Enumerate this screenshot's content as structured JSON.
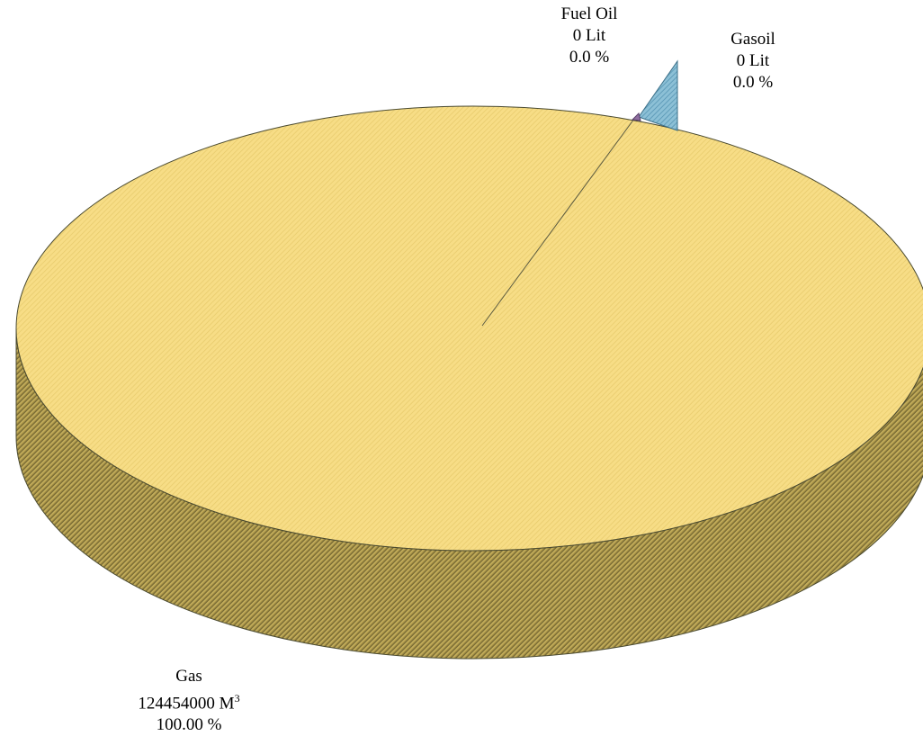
{
  "chart_data": {
    "type": "pie",
    "title": "",
    "categories": [
      "Fuel Oil",
      "Gasoil",
      "Gas"
    ],
    "values": [
      0,
      0,
      124454000
    ],
    "units": [
      "Lit",
      "Lit",
      "M"
    ],
    "unit_superscripts": [
      "",
      "",
      "3"
    ],
    "value_labels": [
      "0 Lit",
      "0  Lit",
      "124454000 M"
    ],
    "percent_labels": [
      "0.0 %",
      "0.0 %",
      "100.00 %"
    ],
    "percents": [
      0.0,
      0.0,
      100.0
    ],
    "style": "3d-exploded",
    "colors": {
      "gas_top": "#f7dd86",
      "gas_side": "#c9b25a",
      "gas_side_dark": "#6e6130",
      "gasoil": "#7fb6cf",
      "fuel_oil": "#8f6fa0",
      "outline": "#4a4a30"
    }
  }
}
